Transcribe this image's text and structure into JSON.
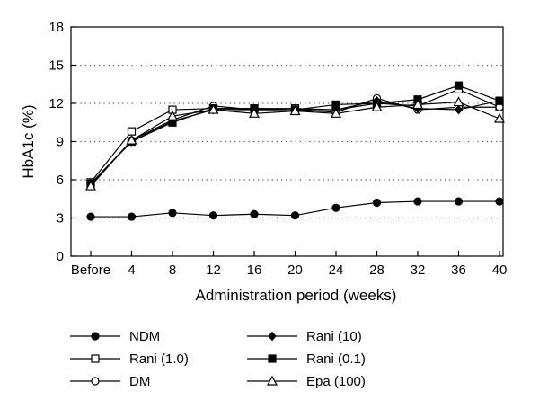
{
  "chart_data": {
    "type": "line",
    "title": "",
    "xlabel": "Administration period (weeks)",
    "ylabel": "HbA1c (%)",
    "categories": [
      "Before",
      "4",
      "8",
      "12",
      "16",
      "20",
      "24",
      "28",
      "32",
      "36",
      "40"
    ],
    "ylim": [
      0,
      18
    ],
    "yticks": [
      0,
      3,
      6,
      9,
      12,
      15,
      18
    ],
    "grid": "horizontal dotted",
    "legend_position": "bottom, two columns",
    "series": [
      {
        "name": "NDM",
        "marker": "filled-circle",
        "values": [
          3.1,
          3.1,
          3.4,
          3.2,
          3.3,
          3.2,
          3.8,
          4.2,
          4.3,
          4.3,
          4.3
        ]
      },
      {
        "name": "Rani (1.0)",
        "marker": "open-square",
        "values": [
          5.8,
          9.8,
          11.5,
          11.6,
          11.6,
          11.6,
          11.5,
          12.0,
          11.8,
          13.1,
          11.7
        ]
      },
      {
        "name": "DM",
        "marker": "open-circle",
        "values": [
          5.6,
          9.1,
          10.7,
          11.8,
          11.5,
          11.5,
          11.3,
          12.4,
          11.5,
          11.7,
          11.7
        ]
      },
      {
        "name": "Rani (10)",
        "marker": "filled-diamond",
        "values": [
          5.7,
          9.0,
          10.6,
          11.5,
          11.5,
          11.5,
          11.5,
          12.2,
          11.6,
          11.5,
          12.2
        ]
      },
      {
        "name": "Rani (0.1)",
        "marker": "filled-square",
        "values": [
          5.7,
          9.0,
          10.5,
          11.6,
          11.6,
          11.5,
          11.9,
          12.0,
          12.3,
          13.4,
          12.2
        ]
      },
      {
        "name": "Epa (100)",
        "marker": "open-triangle",
        "values": [
          5.5,
          9.1,
          11.0,
          11.5,
          11.2,
          11.4,
          11.2,
          11.7,
          11.9,
          12.1,
          10.8
        ]
      }
    ]
  }
}
